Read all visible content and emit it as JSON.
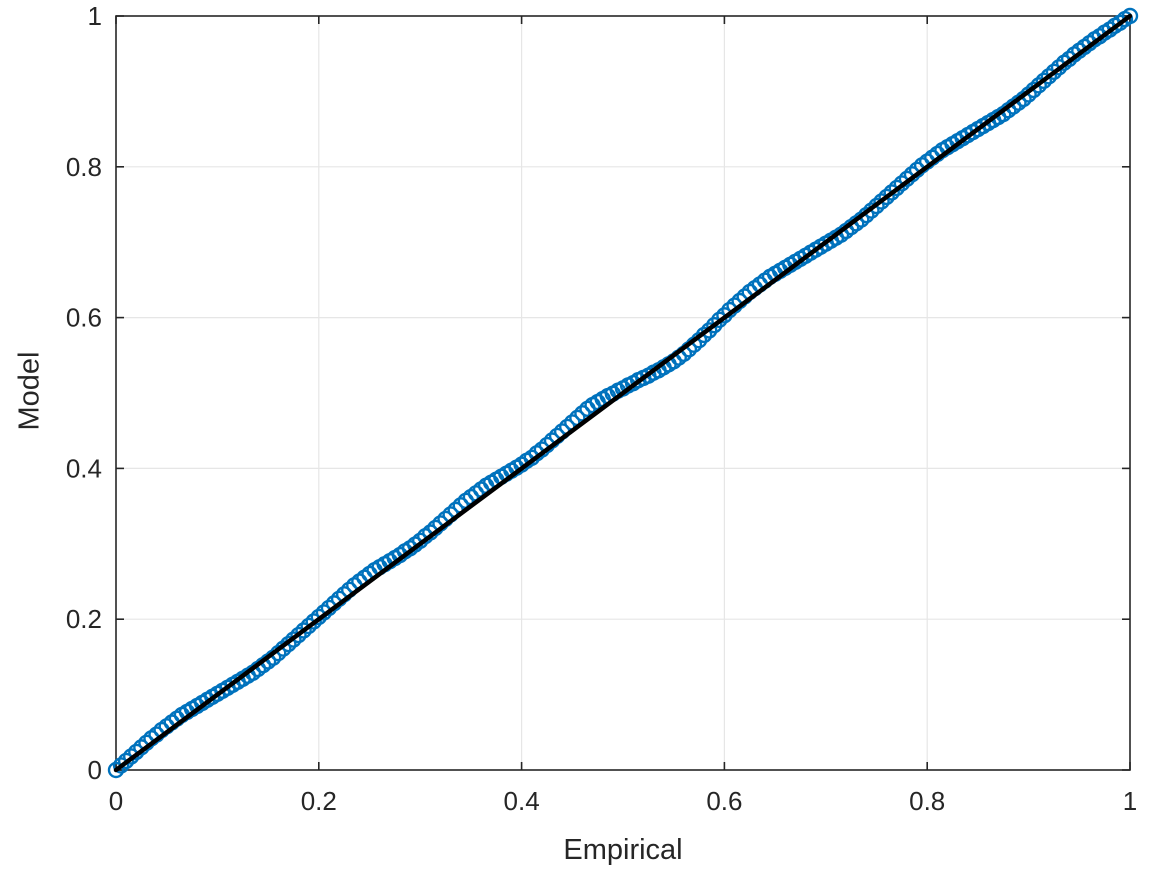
{
  "figure": {
    "background": "#FFFFFF"
  },
  "chart_data": {
    "type": "scatter",
    "title": "",
    "xlabel": "Empirical",
    "ylabel": "Model",
    "xlim": [
      0,
      1
    ],
    "ylim": [
      0,
      1
    ],
    "xticks": [
      0,
      0.2,
      0.4,
      0.6,
      0.8,
      1
    ],
    "yticks": [
      0,
      0.2,
      0.4,
      0.6,
      0.8,
      1
    ],
    "xtick_labels": [
      "0",
      "0.2",
      "0.4",
      "0.6",
      "0.8",
      "1"
    ],
    "ytick_labels": [
      "0",
      "0.2",
      "0.4",
      "0.6",
      "0.8",
      "1"
    ],
    "grid": true,
    "legend": "none",
    "colors": {
      "marker": "#0072BD",
      "reference_line": "#000000",
      "grid": "#E6E6E6",
      "axis": "#262626",
      "text": "#262626",
      "background": "#FFFFFF"
    },
    "series": [
      {
        "name": "pp-scatter",
        "kind": "scatter",
        "marker": "open-circle",
        "color": "#0072BD",
        "x_start": 0,
        "x_step": 0.005,
        "y_rule": "y = x + deviation/1000",
        "deviations_x1000": [
          0,
          1,
          2,
          3,
          4,
          5,
          6,
          7,
          7,
          8,
          8,
          8,
          8,
          8,
          7,
          6,
          5,
          4,
          3,
          2,
          1,
          0,
          -1,
          -2,
          -3,
          -4,
          -5,
          -6,
          -6,
          -6,
          -6,
          -6,
          -5,
          -4,
          -3,
          -2,
          -1,
          0,
          1,
          2,
          3,
          4,
          5,
          6,
          7,
          8,
          9,
          10,
          10,
          10,
          10,
          10,
          9,
          8,
          7,
          6,
          5,
          5,
          4,
          4,
          4,
          5,
          5,
          6,
          7,
          8,
          9,
          10,
          11,
          12,
          12,
          12,
          12,
          12,
          11,
          10,
          9,
          8,
          7,
          6,
          5,
          5,
          4,
          5,
          5,
          6,
          7,
          8,
          9,
          10,
          11,
          12,
          13,
          14,
          14,
          13,
          12,
          11,
          9,
          8,
          6,
          5,
          3,
          2,
          0,
          -2,
          -3,
          -5,
          -6,
          -7,
          -8,
          -8,
          -8,
          -7,
          -6,
          -5,
          -3,
          -2,
          0,
          2,
          3,
          5,
          6,
          7,
          8,
          9,
          9,
          9,
          9,
          9,
          8,
          7,
          6,
          5,
          4,
          3,
          2,
          1,
          0,
          -1,
          -2,
          -3,
          -4,
          -5,
          -5,
          -5,
          -5,
          -5,
          -4,
          -3,
          -2,
          -1,
          0,
          1,
          2,
          3,
          4,
          5,
          6,
          7,
          7,
          7,
          7,
          7,
          6,
          5,
          4,
          3,
          2,
          1,
          0,
          -1,
          -2,
          -3,
          -4,
          -5,
          -5,
          -5,
          -5,
          -5,
          -4,
          -3,
          -2,
          -1,
          0,
          1,
          2,
          3,
          3,
          4,
          4,
          4,
          4,
          4,
          3,
          3,
          2,
          2,
          1,
          1,
          0
        ]
      },
      {
        "name": "reference-line",
        "kind": "line",
        "color": "#000000",
        "points": [
          [
            0,
            0
          ],
          [
            1,
            1
          ]
        ]
      }
    ]
  }
}
